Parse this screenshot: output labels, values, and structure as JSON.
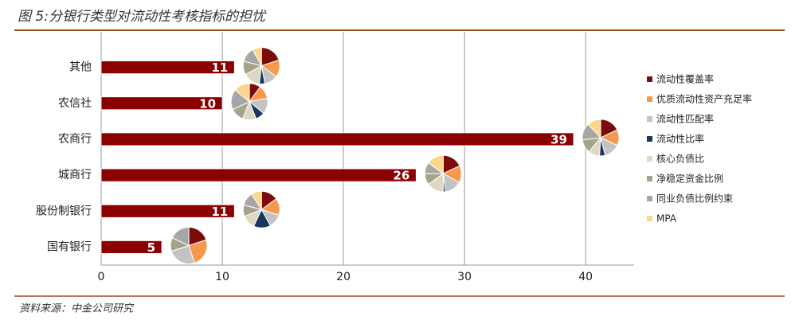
{
  "chart_data": {
    "type": "bar",
    "title": "图 5:分银行类型对流动性考核指标的担忧",
    "source": "资料来源：中金公司研究",
    "categories": [
      "其他",
      "农信社",
      "农商行",
      "城商行",
      "股份制银行",
      "国有银行"
    ],
    "values": [
      11,
      10,
      39,
      26,
      11,
      5
    ],
    "color": "#8b0000",
    "xlim": [
      0,
      44
    ],
    "xticks": [
      0,
      10,
      20,
      30,
      40
    ],
    "grid": true,
    "pie_series": [
      {
        "name": "流动性覆盖率",
        "color": "#7b0c0c",
        "values": [
          20,
          10,
          18,
          18,
          15,
          20
        ]
      },
      {
        "name": "优质流动性资产充足率",
        "color": "#f59a4d",
        "values": [
          15,
          12,
          14,
          15,
          15,
          25
        ]
      },
      {
        "name": "流动性匹配率",
        "color": "#c3c3c6",
        "values": [
          12,
          14,
          14,
          15,
          12,
          25
        ]
      },
      {
        "name": "流动性比率",
        "color": "#17375e",
        "values": [
          5,
          8,
          5,
          2,
          15,
          0
        ]
      },
      {
        "name": "核心负债比",
        "color": "#ddd8bf",
        "values": [
          15,
          12,
          10,
          15,
          12,
          0
        ]
      },
      {
        "name": "净稳定资金比例",
        "color": "#a3a48a",
        "values": [
          12,
          12,
          12,
          10,
          10,
          12
        ]
      },
      {
        "name": "同业负债比例约束",
        "color": "#a6a6a6",
        "values": [
          13,
          18,
          15,
          10,
          12,
          18
        ]
      },
      {
        "name": "MPA",
        "color": "#fdd68c",
        "values": [
          8,
          14,
          12,
          15,
          9,
          0
        ]
      }
    ]
  }
}
